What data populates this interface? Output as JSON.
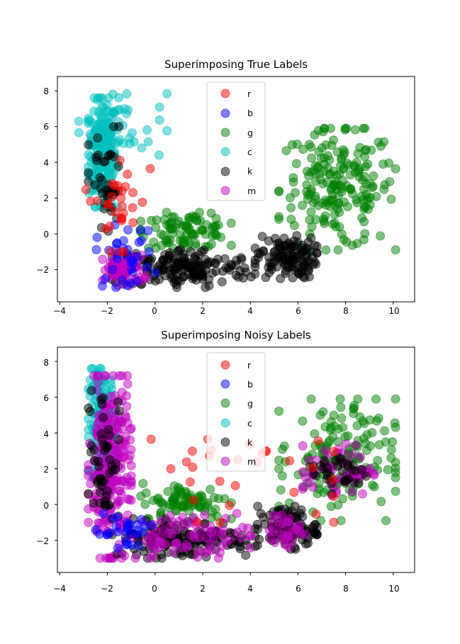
{
  "figure": {
    "background": "#ffffff"
  },
  "colors": {
    "r": "#ff0000",
    "b": "#0000ff",
    "g": "#008000",
    "c": "#00bfbf",
    "k": "#000000",
    "m": "#bf00bf"
  },
  "chart_data": [
    {
      "type": "scatter",
      "title": "Superimposing True Labels",
      "xlabel": "",
      "ylabel": "",
      "xlim": [
        -4.1,
        10.9
      ],
      "ylim": [
        -3.8,
        8.8
      ],
      "xticks": [
        "−4",
        "−2",
        "0",
        "2",
        "4",
        "6",
        "8",
        "10"
      ],
      "xtick_values": [
        -4,
        -2,
        0,
        2,
        4,
        6,
        8,
        10
      ],
      "yticks": [
        "−2",
        "0",
        "2",
        "4",
        "6",
        "8"
      ],
      "ytick_values": [
        -2,
        0,
        2,
        4,
        6,
        8
      ],
      "grid": false,
      "legend_position": "top-center",
      "legend": [
        "r",
        "b",
        "g",
        "c",
        "k",
        "m"
      ],
      "marker_alpha": 0.5,
      "clusters": [
        {
          "label": "c",
          "desc": "left column",
          "x": [
            -2.8,
            -1.6
          ],
          "y": [
            1.5,
            7.6
          ],
          "n": 220
        },
        {
          "label": "c",
          "desc": "upper spread",
          "x": [
            -3.2,
            0.5
          ],
          "y": [
            4.0,
            8.1
          ],
          "n": 40
        },
        {
          "label": "g",
          "desc": "right cluster",
          "x": [
            5.2,
            10.1
          ],
          "y": [
            -0.9,
            5.9
          ],
          "n": 200
        },
        {
          "label": "g",
          "desc": "middle spread",
          "x": [
            -0.6,
            3.2
          ],
          "y": [
            -0.8,
            1.2
          ],
          "n": 90
        },
        {
          "label": "k",
          "desc": "bottom band",
          "x": [
            -1.8,
            4.2
          ],
          "y": [
            -3.0,
            -0.8
          ],
          "n": 170
        },
        {
          "label": "k",
          "desc": "right bottom",
          "x": [
            4.3,
            6.8
          ],
          "y": [
            -2.5,
            -0.1
          ],
          "n": 110
        },
        {
          "label": "k",
          "desc": "left column",
          "x": [
            -2.8,
            -1.3
          ],
          "y": [
            -0.6,
            6.0
          ],
          "n": 40
        },
        {
          "label": "m",
          "desc": "bottom left",
          "x": [
            -2.2,
            -0.4
          ],
          "y": [
            -2.9,
            -1.2
          ],
          "n": 70
        },
        {
          "label": "b",
          "desc": "bottom left",
          "x": [
            -2.5,
            0.0
          ],
          "y": [
            -3.0,
            0.5
          ],
          "n": 35
        },
        {
          "label": "r",
          "desc": "left",
          "x": [
            -2.9,
            -0.2
          ],
          "y": [
            -1.0,
            4.8
          ],
          "n": 30
        }
      ]
    },
    {
      "type": "scatter",
      "title": "Superimposing Noisy Labels",
      "xlabel": "",
      "ylabel": "",
      "xlim": [
        -4.1,
        10.9
      ],
      "ylim": [
        -3.8,
        8.8
      ],
      "xticks": [
        "−4",
        "−2",
        "0",
        "2",
        "4",
        "6",
        "8",
        "10"
      ],
      "xtick_values": [
        -4,
        -2,
        0,
        2,
        4,
        6,
        8,
        10
      ],
      "yticks": [
        "−2",
        "0",
        "2",
        "4",
        "6",
        "8"
      ],
      "ytick_values": [
        -2,
        0,
        2,
        4,
        6,
        8
      ],
      "grid": false,
      "legend_position": "top-center",
      "legend": [
        "r",
        "b",
        "g",
        "c",
        "k",
        "m"
      ],
      "marker_alpha": 0.5,
      "clusters": [
        {
          "label": "c",
          "desc": "left column",
          "x": [
            -2.8,
            -1.6
          ],
          "y": [
            1.5,
            7.6
          ],
          "n": 150
        },
        {
          "label": "m",
          "desc": "left column",
          "x": [
            -2.8,
            -1.0
          ],
          "y": [
            -3.0,
            7.2
          ],
          "n": 260
        },
        {
          "label": "k",
          "desc": "left column",
          "x": [
            -2.8,
            -1.5
          ],
          "y": [
            -1.0,
            6.8
          ],
          "n": 50
        },
        {
          "label": "g",
          "desc": "right cluster",
          "x": [
            5.2,
            10.1
          ],
          "y": [
            -0.9,
            5.9
          ],
          "n": 150
        },
        {
          "label": "m",
          "desc": "right cluster",
          "x": [
            6.2,
            9.2
          ],
          "y": [
            0.5,
            3.4
          ],
          "n": 60
        },
        {
          "label": "k",
          "desc": "right cluster",
          "x": [
            6.5,
            9.0
          ],
          "y": [
            0.6,
            3.0
          ],
          "n": 35
        },
        {
          "label": "g",
          "desc": "middle spread",
          "x": [
            -0.6,
            3.2
          ],
          "y": [
            -0.8,
            1.2
          ],
          "n": 80
        },
        {
          "label": "k",
          "desc": "bottom band",
          "x": [
            -1.8,
            4.2
          ],
          "y": [
            -3.0,
            -0.8
          ],
          "n": 150
        },
        {
          "label": "m",
          "desc": "bottom band",
          "x": [
            -1.5,
            4.0
          ],
          "y": [
            -3.0,
            -0.5
          ],
          "n": 80
        },
        {
          "label": "k",
          "desc": "right bottom",
          "x": [
            4.3,
            6.8
          ],
          "y": [
            -2.5,
            -0.1
          ],
          "n": 100
        },
        {
          "label": "m",
          "desc": "right bottom",
          "x": [
            4.8,
            6.3
          ],
          "y": [
            -2.4,
            -0.6
          ],
          "n": 30
        },
        {
          "label": "b",
          "desc": "bottom left",
          "x": [
            -2.5,
            0.0
          ],
          "y": [
            -3.0,
            0.0
          ],
          "n": 30
        },
        {
          "label": "r",
          "desc": "scattered",
          "x": [
            -2.9,
            7.5
          ],
          "y": [
            -1.0,
            4.8
          ],
          "n": 30
        }
      ]
    }
  ]
}
